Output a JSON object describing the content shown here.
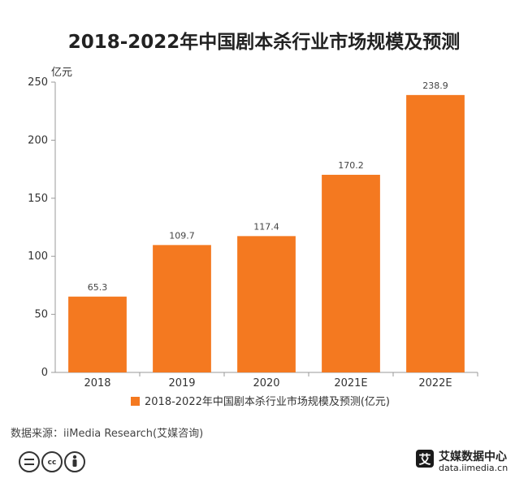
{
  "chart_data": {
    "type": "bar",
    "title": "2018-2022年中国剧本杀行业市场规模及预测",
    "ylabel": "亿元",
    "xlabel": "",
    "categories": [
      "2018",
      "2019",
      "2020",
      "2021E",
      "2022E"
    ],
    "series": [
      {
        "name": "2018-2022年中国剧本杀行业市场规模及预测(亿元)",
        "values": [
          65.3,
          109.7,
          117.4,
          170.2,
          238.9
        ],
        "labels": [
          "65.3",
          "109.7",
          "117.4",
          "170.2",
          "238.9"
        ],
        "color": "#F47920"
      }
    ],
    "ylim": [
      0,
      250
    ],
    "yticks": [
      0,
      50,
      100,
      150,
      200,
      250
    ],
    "grid": false,
    "legend": "bottom"
  },
  "source": "数据来源：iiMedia Research(艾媒咨询)",
  "brand": {
    "name": "艾媒数据中心",
    "url": "data.iimedia.cn",
    "logo_char": "艾",
    "logo_color": "#1a1a1a"
  },
  "license": {
    "icons": [
      "equals-icon",
      "cc-icon",
      "person-icon"
    ],
    "cc_text": "cc"
  },
  "colors": {
    "axis": "#999999"
  }
}
